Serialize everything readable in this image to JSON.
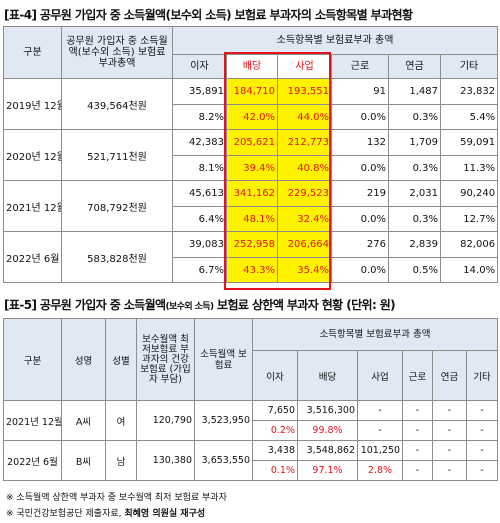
{
  "table4": {
    "title": "[표-4] 공무원 가입자 중 소득월액(보수외 소득) 보험료 부과자의 소득항목별 부과현황",
    "headers": {
      "period": "구분",
      "total": "공무원 가입자 중 소득월액(보수외 소득) 보험료 부과총액",
      "group": "소득항목별 보험료부과 총액",
      "interest": "이자",
      "dividend": "배당",
      "business": "사업",
      "labor": "근로",
      "pension": "연금",
      "other": "기타"
    },
    "rows": [
      {
        "period": "2019년 12월",
        "total": "439,564천원",
        "amounts": [
          "35,891",
          "184,710",
          "193,551",
          "91",
          "1,487",
          "23,832"
        ],
        "ratios": [
          "8.2%",
          "42.0%",
          "44.0%",
          "0.0%",
          "0.3%",
          "5.4%"
        ]
      },
      {
        "period": "2020년 12월",
        "total": "521,711천원",
        "amounts": [
          "42,383",
          "205,621",
          "212,773",
          "132",
          "1,709",
          "59,091"
        ],
        "ratios": [
          "8.1%",
          "39.4%",
          "40.8%",
          "0.0%",
          "0.3%",
          "11.3%"
        ]
      },
      {
        "period": "2021년 12월",
        "total": "708,792천원",
        "amounts": [
          "45,613",
          "341,162",
          "229,523",
          "219",
          "2,031",
          "90,240"
        ],
        "ratios": [
          "6.4%",
          "48.1%",
          "32.4%",
          "0.0%",
          "0.3%",
          "12.7%"
        ]
      },
      {
        "period": "2022년 6월",
        "total": "583,828천원",
        "amounts": [
          "39,083",
          "252,958",
          "206,664",
          "276",
          "2,839",
          "82,006"
        ],
        "ratios": [
          "6.7%",
          "43.3%",
          "35.4%",
          "0.0%",
          "0.5%",
          "14.0%"
        ]
      }
    ]
  },
  "table5": {
    "title_main": "[표-5] 공무원 가입자 중 소득월액",
    "title_small": "(보수외 소득)",
    "title_rest": " 보험료 상한액 부과자 현황 (단위: 원)",
    "headers": {
      "period": "구분",
      "name": "성명",
      "gender": "성별",
      "salary_premium": "보수월액 최저보험료 부과자의 건강보험료 (가입자 부담)",
      "income_premium": "소득월액 보험료",
      "group": "소득항목별 보험료부과 총액",
      "interest": "이자",
      "dividend": "배당",
      "business": "사업",
      "labor": "근로",
      "pension": "연금",
      "other": "기타"
    },
    "rows": [
      {
        "period": "2021년 12월",
        "name": "A씨",
        "gender": "여",
        "salary_premium": "120,790",
        "income_premium": "3,523,950",
        "amounts": [
          "7,650",
          "3,516,300",
          "-",
          "-",
          "-",
          "-"
        ],
        "ratios": [
          "0.2%",
          "99.8%",
          "-",
          "-",
          "-",
          "-"
        ]
      },
      {
        "period": "2022년 6월",
        "name": "B씨",
        "gender": "남",
        "salary_premium": "130,380",
        "income_premium": "3,653,550",
        "amounts": [
          "3,438",
          "3,548,862",
          "101,250",
          "-",
          "-",
          "-"
        ],
        "ratios": [
          "0.1%",
          "97.1%",
          "2.8%",
          "-",
          "-",
          "-"
        ]
      }
    ]
  },
  "notes": {
    "note1": "※ 소득월액 상한액 부과자 중 보수월액 최저 보험료 부과자",
    "note2_prefix": "※ 국민건강보험공단 제출자료, ",
    "note2_bold": "최혜영 의원실 재구성"
  },
  "colors": {
    "highlight": "#fff200",
    "accent_red": "#e0151b",
    "header_bg": "#dfe8f3"
  }
}
